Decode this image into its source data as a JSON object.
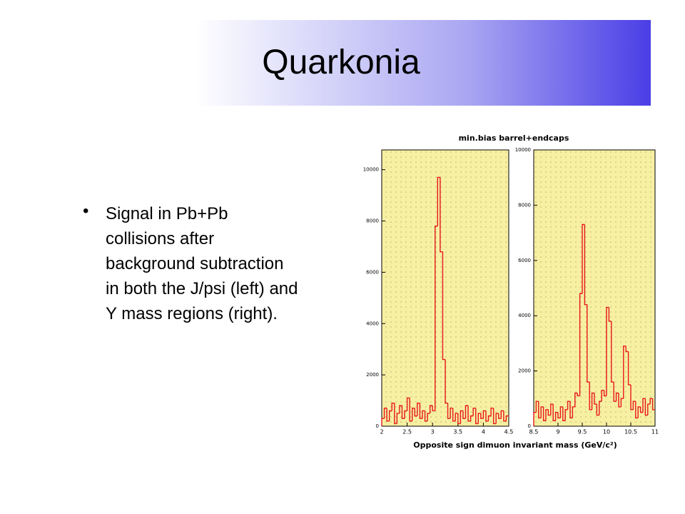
{
  "title": "Quarkonia",
  "bullet": "Signal in Pb+Pb collisions after background subtraction in both the J/psi (left) and Y mass regions (right).",
  "figure": {
    "title": "min.bias  barrel+endcaps",
    "xlabel": "Opposite sign dimuon invariant mass  (GeV/c²)"
  },
  "chart_data": [
    {
      "type": "histogram",
      "color": "#e8161b",
      "bins": [
        2,
        2.05,
        2.1,
        2.15,
        2.2,
        2.25,
        2.3,
        2.35,
        2.4,
        2.45,
        2.5,
        2.55,
        2.6,
        2.65,
        2.7,
        2.75,
        2.8,
        2.85,
        2.9,
        2.95,
        3,
        3.05,
        3.1,
        3.15,
        3.2,
        3.25,
        3.3,
        3.35,
        3.4,
        3.45,
        3.5,
        3.55,
        3.6,
        3.65,
        3.7,
        3.75,
        3.8,
        3.85,
        3.9,
        3.95,
        4,
        4.05,
        4.1,
        4.15,
        4.2,
        4.25,
        4.3,
        4.35,
        4.4,
        4.45,
        4.5
      ],
      "values": [
        300,
        700,
        200,
        600,
        900,
        100,
        500,
        800,
        300,
        600,
        1100,
        200,
        700,
        400,
        900,
        300,
        600,
        200,
        500,
        800,
        600,
        7800,
        9700,
        6800,
        2600,
        900,
        300,
        700,
        200,
        500,
        100,
        600,
        300,
        800,
        200,
        400,
        700,
        100,
        500,
        300,
        600,
        200,
        400,
        700,
        100,
        500,
        300,
        600,
        200,
        400
      ],
      "xlim": [
        2,
        4.5
      ],
      "xticks": [
        2,
        2.5,
        3,
        3.5,
        4,
        4.5
      ],
      "ylim": [
        0,
        10770
      ],
      "yticks": [
        0,
        2000,
        4000,
        6000,
        8000,
        10000
      ]
    },
    {
      "type": "histogram",
      "color": "#e8161b",
      "bins": [
        8.5,
        8.55,
        8.6,
        8.65,
        8.7,
        8.75,
        8.8,
        8.85,
        8.9,
        8.95,
        9,
        9.05,
        9.1,
        9.15,
        9.2,
        9.25,
        9.3,
        9.35,
        9.4,
        9.45,
        9.5,
        9.55,
        9.6,
        9.65,
        9.7,
        9.75,
        9.8,
        9.85,
        9.9,
        9.95,
        10,
        10.05,
        10.1,
        10.15,
        10.2,
        10.25,
        10.3,
        10.35,
        10.4,
        10.45,
        10.5,
        10.55,
        10.6,
        10.65,
        10.7,
        10.75,
        10.8,
        10.85,
        10.9,
        10.95,
        11
      ],
      "values": [
        500,
        900,
        300,
        700,
        200,
        600,
        400,
        800,
        200,
        500,
        300,
        700,
        200,
        600,
        900,
        300,
        700,
        1200,
        1100,
        4800,
        7300,
        4400,
        1600,
        600,
        1200,
        800,
        400,
        900,
        1300,
        1100,
        4300,
        3800,
        1600,
        900,
        1200,
        700,
        1000,
        2900,
        2700,
        1500,
        600,
        900,
        300,
        700,
        500,
        1000,
        400,
        800,
        1000,
        600
      ],
      "xlim": [
        8.5,
        11
      ],
      "xticks": [
        8.5,
        9,
        9.5,
        10,
        10.5,
        11
      ],
      "ylim": [
        0,
        10000
      ],
      "yticks": [
        0,
        2000,
        4000,
        6000,
        8000,
        10000
      ]
    }
  ]
}
